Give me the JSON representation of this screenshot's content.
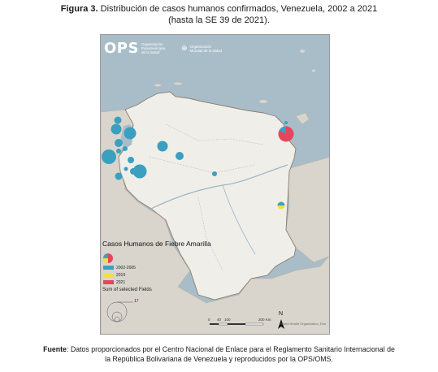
{
  "caption": {
    "label": "Figura 3.",
    "text": "Distribución de casos humanos confirmados, Venezuela, 2002 a 2021",
    "subtext": "(hasta la SE 39 de 2021)."
  },
  "logo": {
    "wordmark": "OPS",
    "org_line1": "Organización",
    "org_line2": "Panamericana",
    "org_line3": "de la Salud",
    "who_line1": "Organización",
    "who_line2": "Mundial de la Salud"
  },
  "legend": {
    "title": "Casos Humanos de Fiebre Amarilla",
    "items": [
      {
        "label": "2002-2005",
        "color": "#3b9fc0"
      },
      {
        "label": "2019",
        "color": "#f0e040"
      },
      {
        "label": "2021",
        "color": "#e4465e"
      }
    ],
    "sum_title": "Sum of selected Fields",
    "size_value": "17"
  },
  "scale": {
    "ticks": [
      "0",
      "40",
      "100",
      "200 Km"
    ]
  },
  "north_label": "N",
  "credit": "World Health Organization, Esri",
  "source": {
    "label": "Fuente",
    "text": ": Datos proporcionados por el Centro Nacional de Enlace para el Reglamento Sanitario Internacional de",
    "text2": "la República Bolivariana de Venezuela y reproducidos por la OPS/OMS."
  },
  "colors": {
    "water": "#a9bdc8",
    "land_venezuela": "#efeee9",
    "land_neighbors": "#d9d5cd",
    "circle_blue": "#3b9fc0",
    "circle_red": "#e4465e",
    "circle_yellow": "#f0e040"
  }
}
